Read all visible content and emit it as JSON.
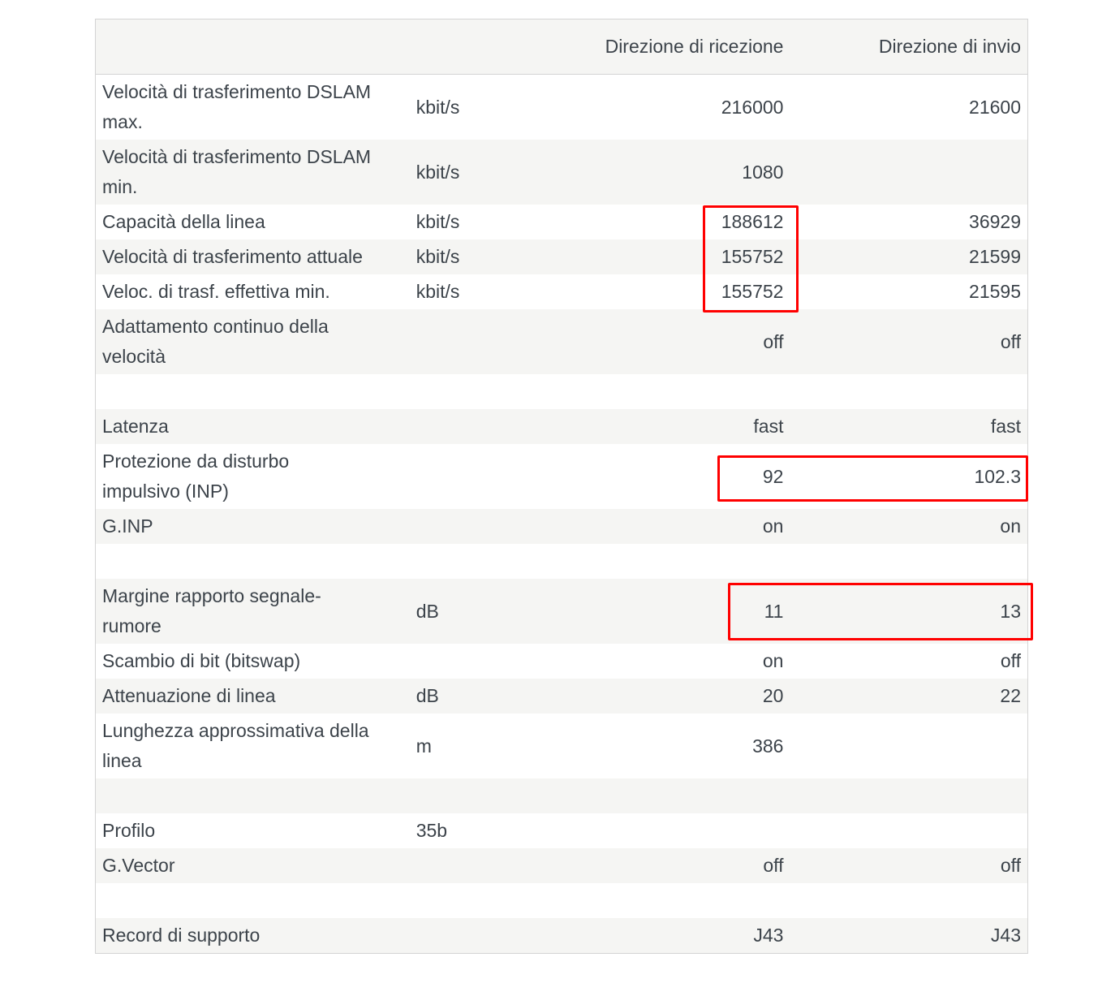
{
  "header": {
    "label": "",
    "unit": "",
    "rx": "Direzione di ricezione",
    "tx": "Direzione di invio"
  },
  "rows": [
    {
      "label": "Velocità di trasferimento DSLAM\nmax.",
      "unit": "kbit/s",
      "rx": "216000",
      "tx": "21600"
    },
    {
      "label": "Velocità di trasferimento DSLAM\nmin.",
      "unit": "kbit/s",
      "rx": "1080",
      "tx": ""
    },
    {
      "label": "Capacità della linea",
      "unit": "kbit/s",
      "rx": "188612",
      "tx": "36929"
    },
    {
      "label": "Velocità di trasferimento attuale",
      "unit": "kbit/s",
      "rx": "155752",
      "tx": "21599"
    },
    {
      "label": "Veloc. di trasf. effettiva min.",
      "unit": "kbit/s",
      "rx": "155752",
      "tx": "21595"
    },
    {
      "label": "Adattamento continuo della\nvelocità",
      "unit": "",
      "rx": "off",
      "tx": "off"
    },
    {
      "label": "",
      "unit": "",
      "rx": "",
      "tx": ""
    },
    {
      "label": "Latenza",
      "unit": "",
      "rx": "fast",
      "tx": "fast"
    },
    {
      "label": "Protezione da disturbo\nimpulsivo (INP)",
      "unit": "",
      "rx": "92",
      "tx": "102.3"
    },
    {
      "label": "G.INP",
      "unit": "",
      "rx": "on",
      "tx": "on"
    },
    {
      "label": "",
      "unit": "",
      "rx": "",
      "tx": ""
    },
    {
      "label": "Margine rapporto segnale-\nrumore",
      "unit": "dB",
      "rx": "11",
      "tx": "13"
    },
    {
      "label": "Scambio di bit (bitswap)",
      "unit": "",
      "rx": "on",
      "tx": "off"
    },
    {
      "label": "Attenuazione di linea",
      "unit": "dB",
      "rx": "20",
      "tx": "22"
    },
    {
      "label": "Lunghezza approssimativa della\nlinea",
      "unit": "m",
      "rx": "386",
      "tx": ""
    },
    {
      "label": "",
      "unit": "",
      "rx": "",
      "tx": ""
    },
    {
      "label": "Profilo",
      "unit": "35b",
      "rx": "",
      "tx": ""
    },
    {
      "label": "G.Vector",
      "unit": "",
      "rx": "off",
      "tx": "off"
    },
    {
      "label": "",
      "unit": "",
      "rx": "",
      "tx": ""
    },
    {
      "label": "Record di supporto",
      "unit": "",
      "rx": "J43",
      "tx": "J43"
    }
  ],
  "highlight_color": "#ff0000"
}
